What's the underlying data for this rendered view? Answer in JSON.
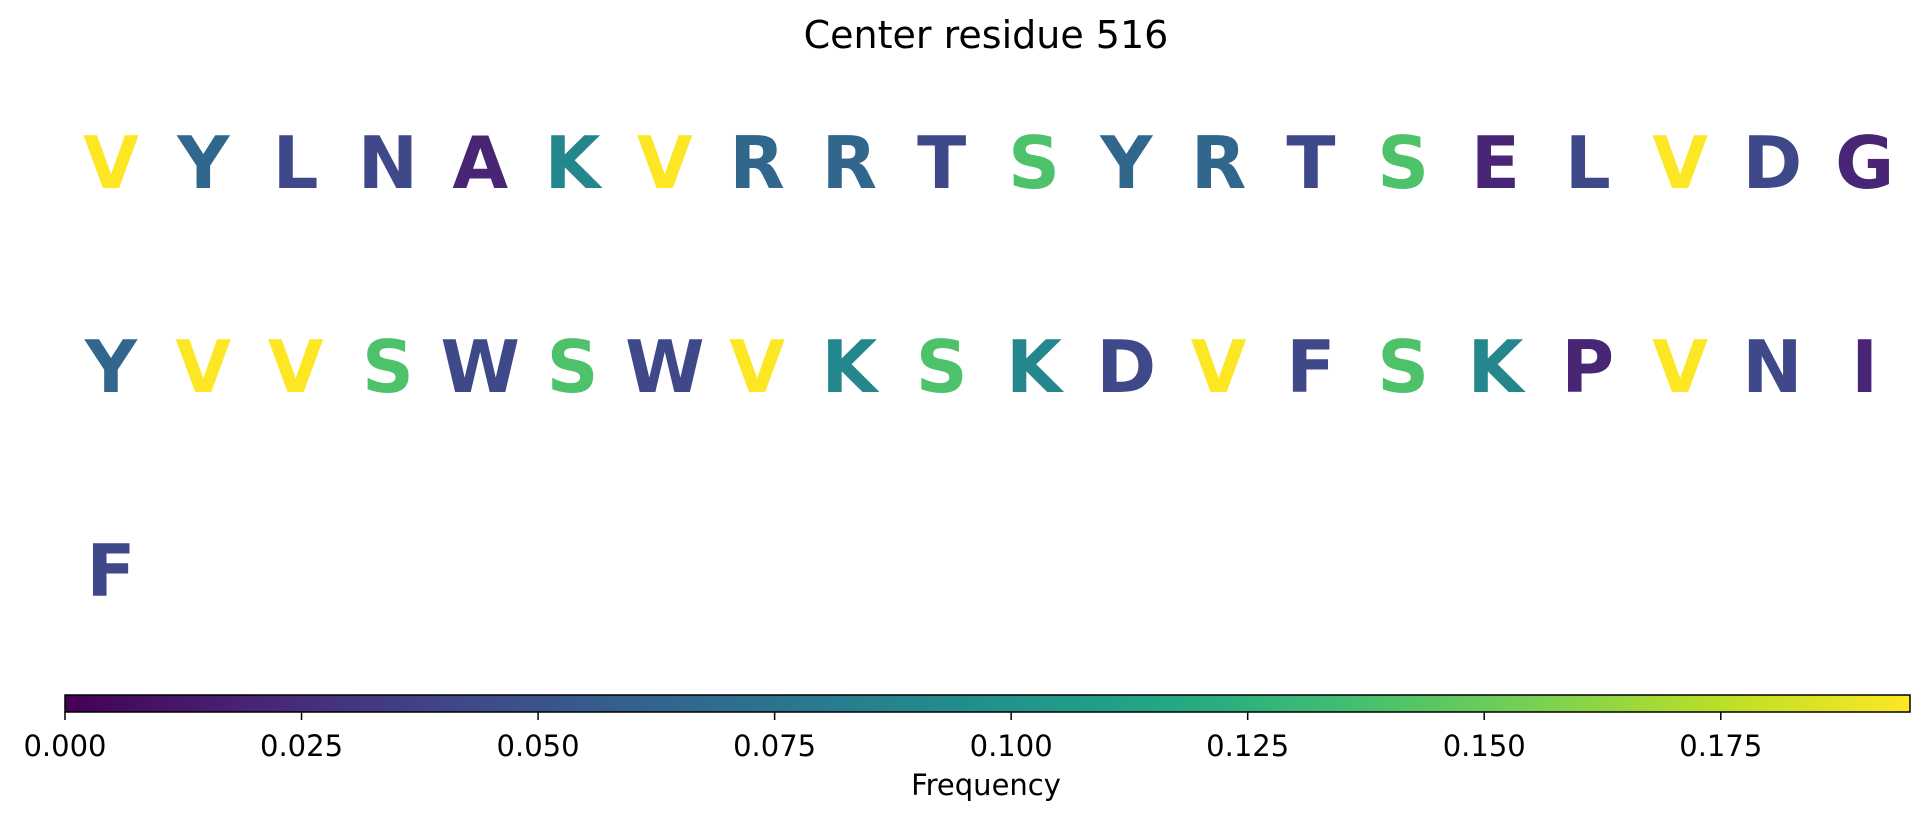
{
  "chart_data": {
    "type": "heatmap",
    "title": "Center residue 516",
    "residues": [
      {
        "letter": "V",
        "frequency": 0.195
      },
      {
        "letter": "Y",
        "frequency": 0.065
      },
      {
        "letter": "L",
        "frequency": 0.042
      },
      {
        "letter": "N",
        "frequency": 0.042
      },
      {
        "letter": "A",
        "frequency": 0.02
      },
      {
        "letter": "K",
        "frequency": 0.09
      },
      {
        "letter": "V",
        "frequency": 0.195
      },
      {
        "letter": "R",
        "frequency": 0.065
      },
      {
        "letter": "R",
        "frequency": 0.065
      },
      {
        "letter": "T",
        "frequency": 0.042
      },
      {
        "letter": "S",
        "frequency": 0.14
      },
      {
        "letter": "Y",
        "frequency": 0.065
      },
      {
        "letter": "R",
        "frequency": 0.065
      },
      {
        "letter": "T",
        "frequency": 0.042
      },
      {
        "letter": "S",
        "frequency": 0.14
      },
      {
        "letter": "E",
        "frequency": 0.02
      },
      {
        "letter": "L",
        "frequency": 0.042
      },
      {
        "letter": "V",
        "frequency": 0.195
      },
      {
        "letter": "D",
        "frequency": 0.042
      },
      {
        "letter": "G",
        "frequency": 0.02
      },
      {
        "letter": "Y",
        "frequency": 0.065
      },
      {
        "letter": "V",
        "frequency": 0.195
      },
      {
        "letter": "V",
        "frequency": 0.195
      },
      {
        "letter": "S",
        "frequency": 0.14
      },
      {
        "letter": "W",
        "frequency": 0.042
      },
      {
        "letter": "S",
        "frequency": 0.14
      },
      {
        "letter": "W",
        "frequency": 0.042
      },
      {
        "letter": "V",
        "frequency": 0.195
      },
      {
        "letter": "K",
        "frequency": 0.09
      },
      {
        "letter": "S",
        "frequency": 0.14
      },
      {
        "letter": "K",
        "frequency": 0.09
      },
      {
        "letter": "D",
        "frequency": 0.042
      },
      {
        "letter": "V",
        "frequency": 0.195
      },
      {
        "letter": "F",
        "frequency": 0.042
      },
      {
        "letter": "S",
        "frequency": 0.14
      },
      {
        "letter": "K",
        "frequency": 0.09
      },
      {
        "letter": "P",
        "frequency": 0.02
      },
      {
        "letter": "V",
        "frequency": 0.195
      },
      {
        "letter": "N",
        "frequency": 0.042
      },
      {
        "letter": "I",
        "frequency": 0.02
      },
      {
        "letter": "F",
        "frequency": 0.042
      }
    ],
    "colorbar": {
      "colormap": "viridis",
      "range": [
        0.0,
        0.195
      ],
      "ticks": [
        "0.000",
        "0.025",
        "0.050",
        "0.075",
        "0.100",
        "0.125",
        "0.150",
        "0.175"
      ],
      "label": "Frequency",
      "orientation": "horizontal"
    }
  }
}
